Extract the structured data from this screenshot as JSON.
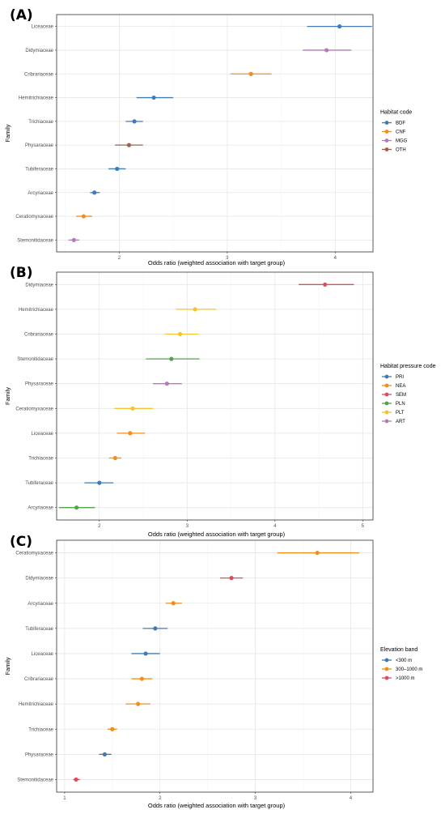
{
  "chart_data": [
    {
      "type": "scatter",
      "panel_label": "(A)",
      "title": "",
      "xlabel": "Odds ratio (weighted association with target group)",
      "ylabel": "Family",
      "xlim": [
        1.45,
        4.32
      ],
      "xticks": [
        2,
        3,
        4
      ],
      "grid": true,
      "legend_title": "Habitat code",
      "legend_position": "right",
      "legend": [
        {
          "code": "BDF",
          "color": "#3f7bb6"
        },
        {
          "code": "CNF",
          "color": "#f28e1c"
        },
        {
          "code": "MGG",
          "color": "#b57bb8"
        },
        {
          "code": "OTH",
          "color": "#a0614a"
        }
      ],
      "points": [
        {
          "family": "Liceaceae",
          "estimate": 4.04,
          "lower": 3.74,
          "upper": 4.34,
          "group": "BDF"
        },
        {
          "family": "Didymiaceae",
          "estimate": 3.92,
          "lower": 3.7,
          "upper": 4.15,
          "group": "MGG"
        },
        {
          "family": "Cribrariaceae",
          "estimate": 3.22,
          "lower": 3.03,
          "upper": 3.41,
          "group": "CNF"
        },
        {
          "family": "Hemitrichiaceae",
          "estimate": 2.32,
          "lower": 2.16,
          "upper": 2.5,
          "group": "BDF"
        },
        {
          "family": "Trichiaceae",
          "estimate": 2.14,
          "lower": 2.06,
          "upper": 2.22,
          "group": "BDF"
        },
        {
          "family": "Physaraceae",
          "estimate": 2.09,
          "lower": 1.96,
          "upper": 2.22,
          "group": "OTH"
        },
        {
          "family": "Tubiferaceae",
          "estimate": 1.98,
          "lower": 1.9,
          "upper": 2.06,
          "group": "BDF"
        },
        {
          "family": "Arcyriaceae",
          "estimate": 1.77,
          "lower": 1.73,
          "upper": 1.82,
          "group": "BDF"
        },
        {
          "family": "Ceratiomyxaceae",
          "estimate": 1.67,
          "lower": 1.6,
          "upper": 1.75,
          "group": "CNF"
        },
        {
          "family": "Stemonitidaceae",
          "estimate": 1.58,
          "lower": 1.53,
          "upper": 1.63,
          "group": "MGG"
        }
      ]
    },
    {
      "type": "scatter",
      "panel_label": "(B)",
      "title": "",
      "xlabel": "Odds ratio (weighted association with target group)",
      "ylabel": "Family",
      "xlim": [
        1.55,
        5.08
      ],
      "xticks": [
        2,
        3,
        4,
        5
      ],
      "grid": true,
      "legend_title": "Habitat pressure code",
      "legend_position": "right",
      "legend": [
        {
          "code": "PRI",
          "color": "#3f7bb6"
        },
        {
          "code": "NEA",
          "color": "#f28e1c"
        },
        {
          "code": "SEM",
          "color": "#e04c57"
        },
        {
          "code": "PLN",
          "color": "#4fa64a"
        },
        {
          "code": "PLT",
          "color": "#f2c42e"
        },
        {
          "code": "ART",
          "color": "#b57bb8"
        }
      ],
      "points": [
        {
          "family": "Didymiaceae",
          "estimate": 4.57,
          "lower": 4.27,
          "upper": 4.9,
          "group": "SEM"
        },
        {
          "family": "Hemitrichiaceae",
          "estimate": 3.09,
          "lower": 2.87,
          "upper": 3.33,
          "group": "PLT"
        },
        {
          "family": "Cribrariaceae",
          "estimate": 2.92,
          "lower": 2.74,
          "upper": 3.13,
          "group": "PLT"
        },
        {
          "family": "Stemonitidaceae",
          "estimate": 2.82,
          "lower": 2.53,
          "upper": 3.14,
          "group": "PLN"
        },
        {
          "family": "Physaraceae",
          "estimate": 2.77,
          "lower": 2.61,
          "upper": 2.94,
          "group": "ART"
        },
        {
          "family": "Ceratiomyxaceae",
          "estimate": 2.38,
          "lower": 2.17,
          "upper": 2.61,
          "group": "PLT"
        },
        {
          "family": "Liceaceae",
          "estimate": 2.35,
          "lower": 2.2,
          "upper": 2.52,
          "group": "NEA"
        },
        {
          "family": "Trichiaceae",
          "estimate": 2.18,
          "lower": 2.11,
          "upper": 2.25,
          "group": "NEA"
        },
        {
          "family": "Tubiferaceae",
          "estimate": 2.0,
          "lower": 1.83,
          "upper": 2.16,
          "group": "PRI"
        },
        {
          "family": "Arcyriaceae",
          "estimate": 1.74,
          "lower": 1.54,
          "upper": 1.95,
          "group": "PLN"
        }
      ]
    },
    {
      "type": "scatter",
      "panel_label": "(C)",
      "title": "",
      "xlabel": "Odds ratio (weighted association with target group)",
      "ylabel": "Family",
      "xlim": [
        0.95,
        4.2
      ],
      "xticks": [
        1,
        2,
        3,
        4
      ],
      "grid": true,
      "legend_title": "Elevation band",
      "legend_position": "right",
      "legend": [
        {
          "code": "<300 m",
          "color": "#3f7bb6"
        },
        {
          "code": "300–1000 m",
          "color": "#f28e1c"
        },
        {
          "code": ">1000 m",
          "color": "#e04c57"
        }
      ],
      "points": [
        {
          "family": "Ceratiomyxaceae",
          "estimate": 3.65,
          "lower": 3.23,
          "upper": 4.09,
          "group": "300–1000 m"
        },
        {
          "family": "Didymiaceae",
          "estimate": 2.75,
          "lower": 2.63,
          "upper": 2.87,
          "group": ">1000 m"
        },
        {
          "family": "Arcyriaceae",
          "estimate": 2.14,
          "lower": 2.06,
          "upper": 2.23,
          "group": "300–1000 m"
        },
        {
          "family": "Tubiferaceae",
          "estimate": 1.95,
          "lower": 1.82,
          "upper": 2.08,
          "group": "<300 m"
        },
        {
          "family": "Liceaceae",
          "estimate": 1.85,
          "lower": 1.7,
          "upper": 2.0,
          "group": "<300 m"
        },
        {
          "family": "Cribrariaceae",
          "estimate": 1.81,
          "lower": 1.7,
          "upper": 1.92,
          "group": "300–1000 m"
        },
        {
          "family": "Hemitrichiaceae",
          "estimate": 1.77,
          "lower": 1.64,
          "upper": 1.9,
          "group": "300–1000 m"
        },
        {
          "family": "Trichiaceae",
          "estimate": 1.5,
          "lower": 1.45,
          "upper": 1.55,
          "group": "300–1000 m"
        },
        {
          "family": "Physaraceae",
          "estimate": 1.42,
          "lower": 1.36,
          "upper": 1.49,
          "group": "<300 m"
        },
        {
          "family": "Stemonitidaceae",
          "estimate": 1.12,
          "lower": 1.09,
          "upper": 1.16,
          "group": ">1000 m"
        }
      ]
    }
  ]
}
